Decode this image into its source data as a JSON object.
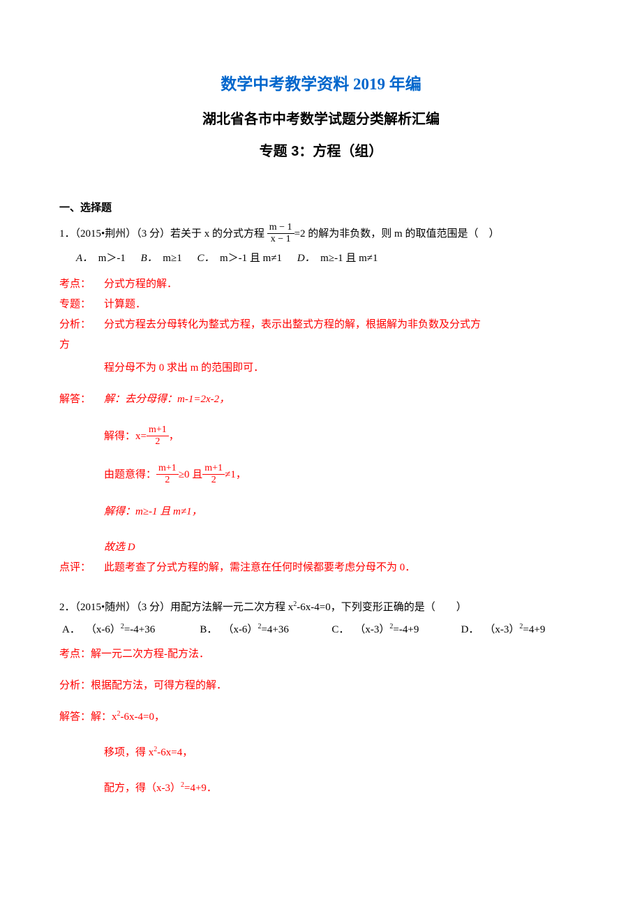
{
  "colors": {
    "accent": "#0066cc",
    "analysis": "#ff0000",
    "text": "#000000",
    "bg": "#ffffff"
  },
  "title_main": "数学中考教学资料 2019 年编",
  "title_sub": "湖北省各市中考数学试题分类解析汇编",
  "title_topic": "专题 3：方程（组）",
  "section_choice": "一、选择题",
  "q1": {
    "stem_prefix": "1．（2015•荆州）（3 分）若关于 x 的分式方程",
    "frac_num": "m − 1",
    "frac_den": "x − 1",
    "stem_suffix": "=2 的解为非负数，则 m 的取值范围是（　）",
    "optA_lbl": "A．",
    "optA_txt": "m＞-1",
    "optB_lbl": "B．",
    "optB_txt": "m≥1",
    "optC_lbl": "C．",
    "optC_txt": "m＞-1 且 m≠1",
    "optD_lbl": "D．",
    "optD_txt": "m≥-1 且 m≠1",
    "kaodian_lbl": "考点：",
    "kaodian": "分式方程的解．",
    "zhuanti_lbl": "专题：",
    "zhuanti": "计算题．",
    "fenxi_lbl": "分析：",
    "fenxi_line1": "分式方程去分母转化为整式方程，表示出整式方程的解，根据解为非负数及分式方",
    "fenxi_line2": "程分母不为 0 求出 m 的范围即可．",
    "jieda_lbl": "解答：",
    "jieda_l1": "解：去分母得：m-1=2x-2，",
    "jieda_l2_pre": "解得：x=",
    "jieda_l2_num": "m+1",
    "jieda_l2_den": "2",
    "jieda_l2_post": "，",
    "jieda_l3_pre": "由题意得：",
    "jieda_l3_num1": "m+1",
    "jieda_l3_den1": "2",
    "jieda_l3_mid": "≥0 且",
    "jieda_l3_num2": "m+1",
    "jieda_l3_den2": "2",
    "jieda_l3_post": "≠1，",
    "jieda_l4": "解得：m≥-1 且 m≠1，",
    "jieda_l5": "故选 D",
    "dianping_lbl": "点评：",
    "dianping": "此题考查了分式方程的解，需注意在任何时候都要考虑分母不为 0．"
  },
  "q2": {
    "stem": "2．（2015•随州）（3 分）用配方法解一元二次方程 x2-6x-4=0，下列变形正确的是（　　）",
    "A_letter": "A．",
    "A_txt": "（x-6）2=-4+36",
    "B_letter": "B．",
    "B_txt": "（x-6）2=4+36",
    "C_letter": "C．",
    "C_txt": "（x-3）2=-4+9",
    "D_letter": "D．",
    "D_txt": "（x-3）2=4+9",
    "kaodian_lbl": "考点：",
    "kaodian": "解一元二次方程-配方法．",
    "fenxi_lbl": "分析：",
    "fenxi": "根据配方法，可得方程的解．",
    "jieda_lbl": "解答：",
    "jieda_l1": "解：x2-6x-4=0，",
    "jieda_l2": "移项，得 x2-6x=4，",
    "jieda_l3": "配方，得（x-3）2=4+9．"
  }
}
